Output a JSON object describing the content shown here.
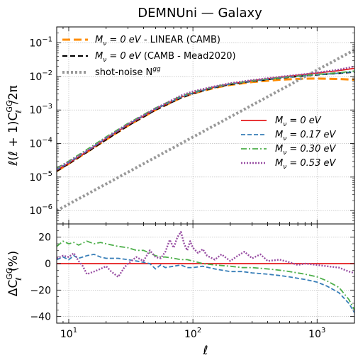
{
  "figure": {
    "title": "DEMNUni — Galaxy"
  },
  "chart_data": [
    {
      "type": "line",
      "panel": "top",
      "xscale": "log",
      "yscale": "log",
      "xlim": [
        8,
        2000
      ],
      "ylim": [
        4e-07,
        0.3
      ],
      "ylabel_parts": [
        "ℓ(ℓ + 1)C",
        "GG",
        "ℓ",
        "/2π"
      ],
      "grid": true,
      "yticks": [
        {
          "value": 1e-06,
          "label": "10",
          "exp": "−6"
        },
        {
          "value": 1e-05,
          "label": "10",
          "exp": "−5"
        },
        {
          "value": 0.0001,
          "label": "10",
          "exp": "−4"
        },
        {
          "value": 0.001,
          "label": "10",
          "exp": "−3"
        },
        {
          "value": 0.01,
          "label": "10",
          "exp": "−2"
        },
        {
          "value": 0.1,
          "label": "10",
          "exp": "−1"
        }
      ],
      "legend_upper": {
        "placement": "upper-left",
        "entries": [
          {
            "series": 0,
            "math": "M",
            "sub": "ν",
            "rest": " = 0 eV",
            "text": " - LINEAR (CAMB)"
          },
          {
            "series": 1,
            "math": "M",
            "sub": "ν",
            "rest": " = 0 eV",
            "text": " (CAMB - Mead2020)"
          },
          {
            "series": 2,
            "math": "",
            "sub": "",
            "rest": "",
            "text": "shot-noise N",
            "sup": "gg"
          }
        ]
      },
      "legend_lower": {
        "placement": "center-right",
        "entries": [
          {
            "series": 3,
            "math": "M",
            "sub": "ν",
            "rest": " = 0 eV"
          },
          {
            "series": 4,
            "math": "M",
            "sub": "ν",
            "rest": " = 0.17 eV"
          },
          {
            "series": 5,
            "math": "M",
            "sub": "ν",
            "rest": " = 0.30 eV"
          },
          {
            "series": 6,
            "math": "M",
            "sub": "ν",
            "rest": " = 0.53 eV"
          }
        ]
      },
      "series": [
        {
          "color": "#ff8c00",
          "dash": "11 5",
          "width": 3,
          "x": [
            8,
            10,
            15,
            20,
            30,
            50,
            80,
            100,
            150,
            200,
            300,
            500,
            800,
            1000,
            1500,
            2000
          ],
          "y": [
            1.5e-05,
            2.5e-05,
            6.5e-05,
            0.00013,
            0.00034,
            0.001,
            0.0023,
            0.0031,
            0.0046,
            0.0056,
            0.0068,
            0.008,
            0.0086,
            0.0087,
            0.0084,
            0.008
          ]
        },
        {
          "color": "#000000",
          "dash": "7 4",
          "width": 2.2,
          "x": [
            8,
            10,
            15,
            20,
            30,
            50,
            80,
            100,
            150,
            200,
            300,
            500,
            800,
            1000,
            1500,
            2000
          ],
          "y": [
            1.5e-05,
            2.5e-05,
            6.5e-05,
            0.00013,
            0.00034,
            0.001,
            0.0023,
            0.0031,
            0.0047,
            0.0058,
            0.0072,
            0.0089,
            0.0105,
            0.0112,
            0.0125,
            0.0135
          ]
        },
        {
          "color": "#999999",
          "dash": "3 3",
          "width": 4,
          "x": [
            8,
            2000
          ],
          "y": [
            1e-06,
            0.062
          ]
        },
        {
          "color": "#e41a1c",
          "dash": "",
          "width": 1.8,
          "x": [
            8,
            10,
            15,
            20,
            30,
            50,
            80,
            100,
            150,
            200,
            300,
            500,
            800,
            1000,
            1500,
            2000
          ],
          "y": [
            1.6e-05,
            2.6e-05,
            6.8e-05,
            0.00014,
            0.00036,
            0.00105,
            0.0024,
            0.0032,
            0.0049,
            0.006,
            0.0075,
            0.0094,
            0.0115,
            0.0126,
            0.015,
            0.0175
          ]
        },
        {
          "color": "#377eb8",
          "dash": "6 3",
          "width": 1.8,
          "x": [
            8,
            10,
            15,
            20,
            30,
            50,
            80,
            100,
            150,
            200,
            300,
            500,
            800,
            1000,
            1500,
            2000
          ],
          "y": [
            1.65e-05,
            2.7e-05,
            7e-05,
            0.000144,
            0.00037,
            0.00107,
            0.0024,
            0.0032,
            0.0048,
            0.0059,
            0.0073,
            0.009,
            0.0106,
            0.0113,
            0.0125,
            0.014
          ]
        },
        {
          "color": "#4daf4a",
          "dash": "8 3 2 3",
          "width": 1.8,
          "x": [
            8,
            10,
            15,
            20,
            30,
            50,
            80,
            100,
            150,
            200,
            300,
            500,
            800,
            1000,
            1500,
            2000
          ],
          "y": [
            1.85e-05,
            3e-05,
            7.8e-05,
            0.000158,
            0.0004,
            0.00115,
            0.0026,
            0.0034,
            0.005,
            0.0061,
            0.0075,
            0.0092,
            0.0108,
            0.0115,
            0.013,
            0.0145
          ]
        },
        {
          "color": "#984ea3",
          "dash": "2 2",
          "width": 2.4,
          "x": [
            8,
            10,
            15,
            20,
            30,
            50,
            80,
            100,
            150,
            200,
            300,
            500,
            800,
            1000,
            1500,
            2000
          ],
          "y": [
            1.75e-05,
            2.85e-05,
            7.2e-05,
            0.000148,
            0.00038,
            0.00112,
            0.0027,
            0.0036,
            0.0051,
            0.0063,
            0.0078,
            0.0098,
            0.0118,
            0.013,
            0.016,
            0.02
          ]
        }
      ]
    },
    {
      "type": "line",
      "panel": "bottom",
      "xscale": "log",
      "xlim": [
        8,
        2000
      ],
      "ylim": [
        -45,
        30
      ],
      "xlabel": "ℓ",
      "ylabel_parts": [
        "ΔC",
        "GG",
        "ℓ",
        "(%)"
      ],
      "grid": true,
      "yticks": [
        {
          "value": 20,
          "label": "20"
        },
        {
          "value": 0,
          "label": "0"
        },
        {
          "value": -20,
          "label": "−20"
        },
        {
          "value": -40,
          "label": "−40"
        }
      ],
      "xticks": [
        {
          "value": 10,
          "label": "10",
          "exp": "1"
        },
        {
          "value": 100,
          "label": "10",
          "exp": "2"
        },
        {
          "value": 1000,
          "label": "10",
          "exp": "3"
        }
      ],
      "series": [
        {
          "color": "#e41a1c",
          "dash": "",
          "width": 1.8,
          "x": [
            8,
            2000
          ],
          "y": [
            0,
            0
          ]
        },
        {
          "color": "#377eb8",
          "dash": "6 3",
          "width": 1.8,
          "x": [
            8,
            9,
            10,
            11,
            12,
            14,
            16,
            18,
            20,
            25,
            30,
            35,
            40,
            45,
            50,
            55,
            60,
            70,
            80,
            90,
            100,
            120,
            150,
            200,
            250,
            300,
            400,
            500,
            600,
            800,
            1000,
            1200,
            1500,
            1800,
            2000
          ],
          "y": [
            3,
            5,
            3,
            6,
            4,
            6,
            7,
            5,
            4,
            4,
            3,
            2,
            1,
            0,
            -4,
            -1,
            -3,
            -2,
            -1,
            -3,
            -3,
            -2,
            -4,
            -6,
            -6,
            -7,
            -8,
            -9,
            -10,
            -12,
            -14,
            -17,
            -22,
            -30,
            -37
          ]
        },
        {
          "color": "#4daf4a",
          "dash": "8 3 2 3",
          "width": 1.8,
          "x": [
            8,
            9,
            10,
            11,
            12,
            14,
            16,
            18,
            20,
            25,
            30,
            35,
            40,
            45,
            50,
            55,
            60,
            70,
            80,
            90,
            100,
            120,
            150,
            200,
            250,
            300,
            400,
            500,
            600,
            800,
            1000,
            1200,
            1500,
            1800,
            2000
          ],
          "y": [
            13,
            17,
            15,
            16,
            14,
            17,
            15,
            16,
            15,
            13,
            12,
            10,
            10,
            8,
            6,
            5,
            5,
            4,
            3,
            3,
            2,
            0,
            -1,
            -2,
            -3,
            -3,
            -4,
            -5,
            -6,
            -8,
            -10,
            -13,
            -18,
            -27,
            -35
          ]
        },
        {
          "color": "#984ea3",
          "dash": "2 2",
          "width": 2.4,
          "x": [
            8,
            9,
            10,
            11,
            12,
            13,
            14,
            16,
            18,
            20,
            22,
            25,
            28,
            30,
            35,
            40,
            45,
            50,
            55,
            60,
            65,
            70,
            75,
            80,
            85,
            90,
            95,
            100,
            110,
            120,
            130,
            150,
            170,
            200,
            230,
            260,
            300,
            350,
            400,
            500,
            600,
            700,
            800,
            1000,
            1200,
            1500,
            1800,
            2000
          ],
          "y": [
            4,
            6,
            5,
            8,
            2,
            -2,
            -8,
            -6,
            -4,
            -2,
            -6,
            -10,
            -3,
            0,
            5,
            2,
            10,
            5,
            4,
            9,
            18,
            12,
            20,
            24,
            15,
            10,
            17,
            12,
            8,
            11,
            6,
            3,
            7,
            2,
            6,
            9,
            4,
            7,
            2,
            3,
            1,
            -1,
            0,
            -1,
            -2,
            -3,
            -6,
            -7
          ]
        }
      ]
    }
  ]
}
